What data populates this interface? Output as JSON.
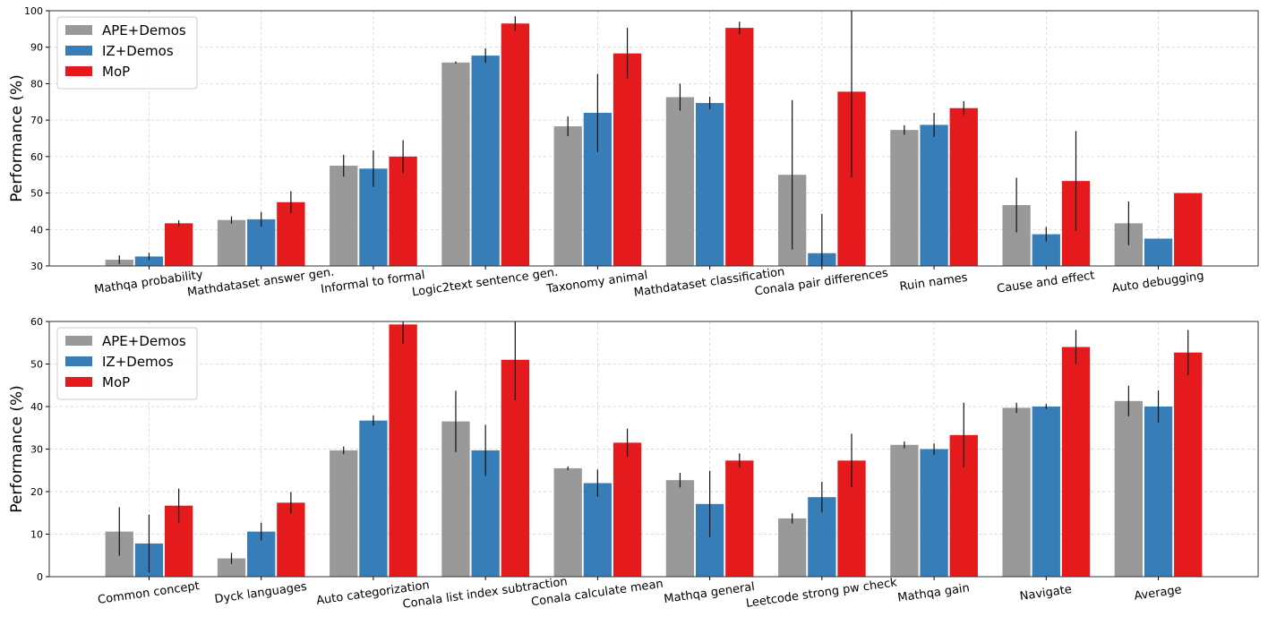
{
  "chart_data": [
    {
      "type": "bar",
      "ylabel": "Performance (%)",
      "ylim": [
        30,
        100
      ],
      "yticks": [
        30,
        40,
        50,
        60,
        70,
        80,
        90,
        100
      ],
      "grid": true,
      "legend_placement": "top-left",
      "categories": [
        "Mathqa probability",
        "Mathdataset answer gen.",
        "Informal to formal",
        "Logic2text sentence gen.",
        "Taxonomy animal",
        "Mathdataset classification",
        "Conala pair differences",
        "Ruin names",
        "Cause and effect",
        "Auto debugging"
      ],
      "series": [
        {
          "name": "APE+Demos",
          "color": "#999999",
          "values": [
            31.7,
            42.6,
            57.5,
            85.8,
            68.3,
            76.3,
            55.0,
            67.3,
            46.7,
            41.7
          ],
          "errors": [
            1.2,
            1.0,
            3.0,
            0.3,
            2.7,
            3.7,
            20.5,
            1.3,
            7.5,
            6.0
          ]
        },
        {
          "name": "IZ+Demos",
          "color": "#377eb8",
          "values": [
            32.6,
            42.8,
            56.7,
            87.7,
            72.0,
            74.7,
            33.5,
            68.7,
            38.7,
            37.5
          ],
          "errors": [
            1.0,
            2.0,
            5.0,
            2.0,
            10.7,
            1.7,
            10.8,
            3.3,
            2.0,
            0
          ]
        },
        {
          "name": "MoP",
          "color": "#e41a1c",
          "values": [
            41.7,
            47.5,
            60.0,
            96.5,
            88.3,
            95.3,
            77.8,
            73.3,
            53.3,
            50.0
          ],
          "errors": [
            0.8,
            3.0,
            4.5,
            2.0,
            7.0,
            1.7,
            23.5,
            1.9,
            13.7,
            0
          ]
        }
      ]
    },
    {
      "type": "bar",
      "ylabel": "Performance (%)",
      "ylim": [
        0,
        60
      ],
      "yticks": [
        0,
        10,
        20,
        30,
        40,
        50,
        60
      ],
      "grid": true,
      "legend_placement": "top-left",
      "categories": [
        "Common concept",
        "Dyck languages",
        "Auto categorization",
        "Conala list index subtraction",
        "Conala calculate mean",
        "Mathqa general",
        "Leetcode strong pw check",
        "Mathqa gain",
        "Navigate",
        "Average"
      ],
      "series": [
        {
          "name": "APE+Demos",
          "color": "#999999",
          "values": [
            10.6,
            4.3,
            29.7,
            36.5,
            25.5,
            22.7,
            13.7,
            31.0,
            39.7,
            41.3
          ],
          "errors": [
            5.7,
            1.3,
            0.9,
            7.2,
            0.4,
            1.7,
            1.2,
            0.8,
            1.2,
            3.6
          ]
        },
        {
          "name": "IZ+Demos",
          "color": "#377eb8",
          "values": [
            7.8,
            10.6,
            36.7,
            29.7,
            22.0,
            17.1,
            18.7,
            30.0,
            40.0,
            40.0
          ],
          "errors": [
            6.8,
            2.1,
            1.2,
            6.0,
            3.2,
            7.8,
            3.6,
            1.3,
            0.6,
            3.8
          ]
        },
        {
          "name": "MoP",
          "color": "#e41a1c",
          "values": [
            16.7,
            17.4,
            59.3,
            51.0,
            31.5,
            27.3,
            27.3,
            33.3,
            54.0,
            52.7
          ],
          "errors": [
            4.0,
            2.5,
            4.5,
            9.5,
            3.3,
            1.7,
            6.3,
            7.6,
            4.0,
            5.3
          ]
        }
      ]
    }
  ]
}
